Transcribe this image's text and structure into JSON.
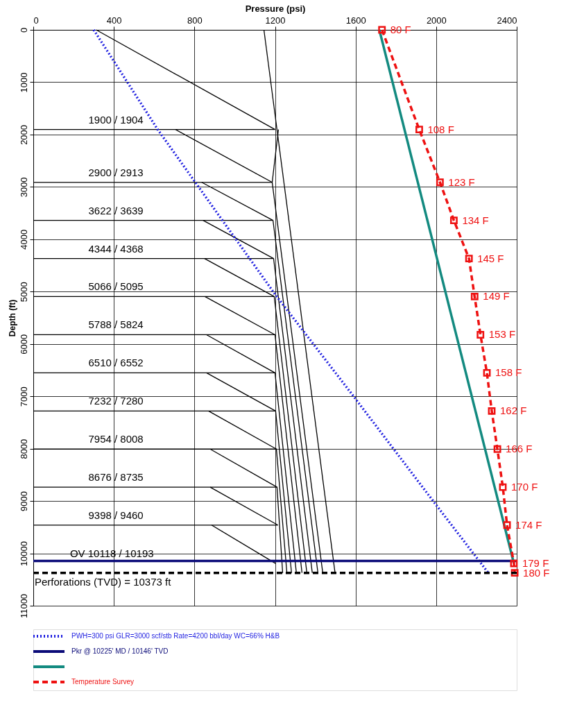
{
  "chart_data": {
    "type": "line",
    "xlabel": "Pressure (psi)",
    "ylabel": "Depth (ft)",
    "xlim": [
      0,
      2400
    ],
    "xticks": [
      0,
      400,
      800,
      1200,
      1600,
      2000,
      2400
    ],
    "ylim": [
      11000,
      0
    ],
    "yticks": [
      0,
      1000,
      2000,
      3000,
      4000,
      5000,
      6000,
      7000,
      8000,
      9000,
      10000,
      11000
    ],
    "grid": true,
    "legend": "bottom",
    "series": [
      {
        "color": "#000000",
        "x": [
          0,
          1200
        ],
        "values": [
          1904,
          1904
        ]
      },
      {
        "color": "#000000",
        "x": [
          0,
          1186,
          1437
        ],
        "values": [
          2913,
          2913,
          10373
        ]
      },
      {
        "color": "#000000",
        "x": [
          0,
          1190,
          1413
        ],
        "values": [
          3639,
          3639,
          10373
        ]
      },
      {
        "color": "#000000",
        "x": [
          0,
          1193,
          1385
        ],
        "values": [
          4368,
          4368,
          10373
        ]
      },
      {
        "color": "#000000",
        "x": [
          0,
          1196,
          1358
        ],
        "values": [
          5095,
          5095,
          10373
        ]
      },
      {
        "color": "#000000",
        "x": [
          0,
          1200,
          1334
        ],
        "values": [
          5824,
          5824,
          10373
        ]
      },
      {
        "color": "#000000",
        "x": [
          0,
          1200,
          1306
        ],
        "values": [
          6552,
          6552,
          10373
        ]
      },
      {
        "color": "#000000",
        "x": [
          0,
          1203,
          1282
        ],
        "values": [
          7280,
          7280,
          10373
        ]
      },
      {
        "color": "#000000",
        "x": [
          0,
          1207,
          1259
        ],
        "values": [
          8008,
          8008,
          10373
        ]
      },
      {
        "color": "#000000",
        "x": [
          0,
          1210,
          1238
        ],
        "values": [
          8735,
          8735,
          10373
        ]
      },
      {
        "color": "#000000",
        "x": [
          0,
          1214
        ],
        "values": [
          9460,
          9460
        ]
      },
      {
        "color": "#000000",
        "x": [
          312,
          1200
        ],
        "values": [
          0,
          1904
        ]
      },
      {
        "color": "#000000",
        "x": [
          706,
          1186
        ],
        "values": [
          1904,
          2913
        ]
      },
      {
        "color": "#000000",
        "x": [
          836,
          1190
        ],
        "values": [
          2913,
          3639
        ]
      },
      {
        "color": "#000000",
        "x": [
          843,
          1193
        ],
        "values": [
          3639,
          4368
        ]
      },
      {
        "color": "#000000",
        "x": [
          850,
          1196
        ],
        "values": [
          4368,
          5095
        ]
      },
      {
        "color": "#000000",
        "x": [
          852,
          1200
        ],
        "values": [
          5095,
          5824
        ]
      },
      {
        "color": "#000000",
        "x": [
          860,
          1200
        ],
        "values": [
          5824,
          6552
        ]
      },
      {
        "color": "#000000",
        "x": [
          860,
          1203
        ],
        "values": [
          6552,
          7280
        ]
      },
      {
        "color": "#000000",
        "x": [
          870,
          1207
        ],
        "values": [
          7280,
          8008
        ]
      },
      {
        "color": "#000000",
        "x": [
          878,
          1210
        ],
        "values": [
          8008,
          8735
        ]
      },
      {
        "color": "#000000",
        "x": [
          878,
          1214
        ],
        "values": [
          8735,
          9460
        ]
      },
      {
        "color": "#000000",
        "x": [
          885,
          1203
        ],
        "values": [
          9460,
          10193
        ]
      },
      {
        "color": "#000000",
        "x": [
          1217,
          1186
        ],
        "values": [
          1904,
          2913
        ]
      },
      {
        "color": "#000000",
        "x": [
          1145,
          1498
        ],
        "values": [
          0,
          10373
        ]
      },
      {
        "name": "PWH=300 psi GLR=3000 scf/stb Rate=4200 bbl/day WC=66% H&B",
        "color": "#1f1fe0",
        "line_style": "dotted",
        "x": [
          300,
          617,
          802,
          1200,
          1590,
          1985,
          2259
        ],
        "values": [
          0,
          1900,
          2900,
          5050,
          7000,
          9000,
          10373
        ]
      },
      {
        "name": "Pkr @ 10225' MD / 10146' TVD",
        "color": "#0a0a78",
        "x": [
          0,
          2400
        ],
        "values": [
          10146,
          10146
        ]
      },
      {
        "color": "#138a80",
        "x": [
          1718,
          2386
        ],
        "values": [
          0,
          10193
        ]
      },
      {
        "name": "Temperature Survey",
        "color": "#ee1111",
        "line_style": "dashed",
        "marker": "square",
        "x": [
          1731,
          1916,
          2019,
          2088,
          2163,
          2191,
          2220,
          2252,
          2276,
          2304,
          2331,
          2352,
          2386,
          2390
        ],
        "values": [
          0,
          1904,
          2913,
          3639,
          4368,
          5095,
          5824,
          6552,
          7280,
          8008,
          8735,
          9460,
          10193,
          10373
        ]
      }
    ],
    "ref_lines": [
      {
        "axis": "y",
        "value": 10373,
        "label": "Perforations (TVD) = 10373 ft",
        "color": "#000000",
        "line_style": "dashed"
      }
    ],
    "annotations": [
      {
        "text": "1900 / 1904",
        "x": 410,
        "y": 1904
      },
      {
        "text": "2900 / 2913",
        "x": 410,
        "y": 2913
      },
      {
        "text": "3622 / 3639",
        "x": 410,
        "y": 3639
      },
      {
        "text": "4344 / 4368",
        "x": 410,
        "y": 4368
      },
      {
        "text": "5066 / 5095",
        "x": 410,
        "y": 5095
      },
      {
        "text": "5788 / 5824",
        "x": 410,
        "y": 5824
      },
      {
        "text": "6510 / 6552",
        "x": 410,
        "y": 6552
      },
      {
        "text": "7232 / 7280",
        "x": 410,
        "y": 7280
      },
      {
        "text": "7954 / 8008",
        "x": 410,
        "y": 8008
      },
      {
        "text": "8676 / 8735",
        "x": 410,
        "y": 8735
      },
      {
        "text": "9398 / 9460",
        "x": 410,
        "y": 9460
      },
      {
        "text": "OV 10118 / 10193",
        "x": 390,
        "y": 10193
      },
      {
        "text": "80 F",
        "x": 1731,
        "y": 0
      },
      {
        "text": "108 F",
        "x": 1916,
        "y": 1904
      },
      {
        "text": "123 F",
        "x": 2019,
        "y": 2913
      },
      {
        "text": "134 F",
        "x": 2088,
        "y": 3639
      },
      {
        "text": "145 F",
        "x": 2163,
        "y": 4368
      },
      {
        "text": "149 F",
        "x": 2191,
        "y": 5095
      },
      {
        "text": "153 F",
        "x": 2220,
        "y": 5824
      },
      {
        "text": "158 F",
        "x": 2252,
        "y": 6552
      },
      {
        "text": "162 F",
        "x": 2276,
        "y": 7280
      },
      {
        "text": "166 F",
        "x": 2304,
        "y": 8008
      },
      {
        "text": "170 F",
        "x": 2331,
        "y": 8735
      },
      {
        "text": "174 F",
        "x": 2352,
        "y": 9460
      },
      {
        "text": "179 F",
        "x": 2386,
        "y": 10193
      },
      {
        "text": "180 F",
        "x": 2390,
        "y": 10373
      }
    ]
  }
}
